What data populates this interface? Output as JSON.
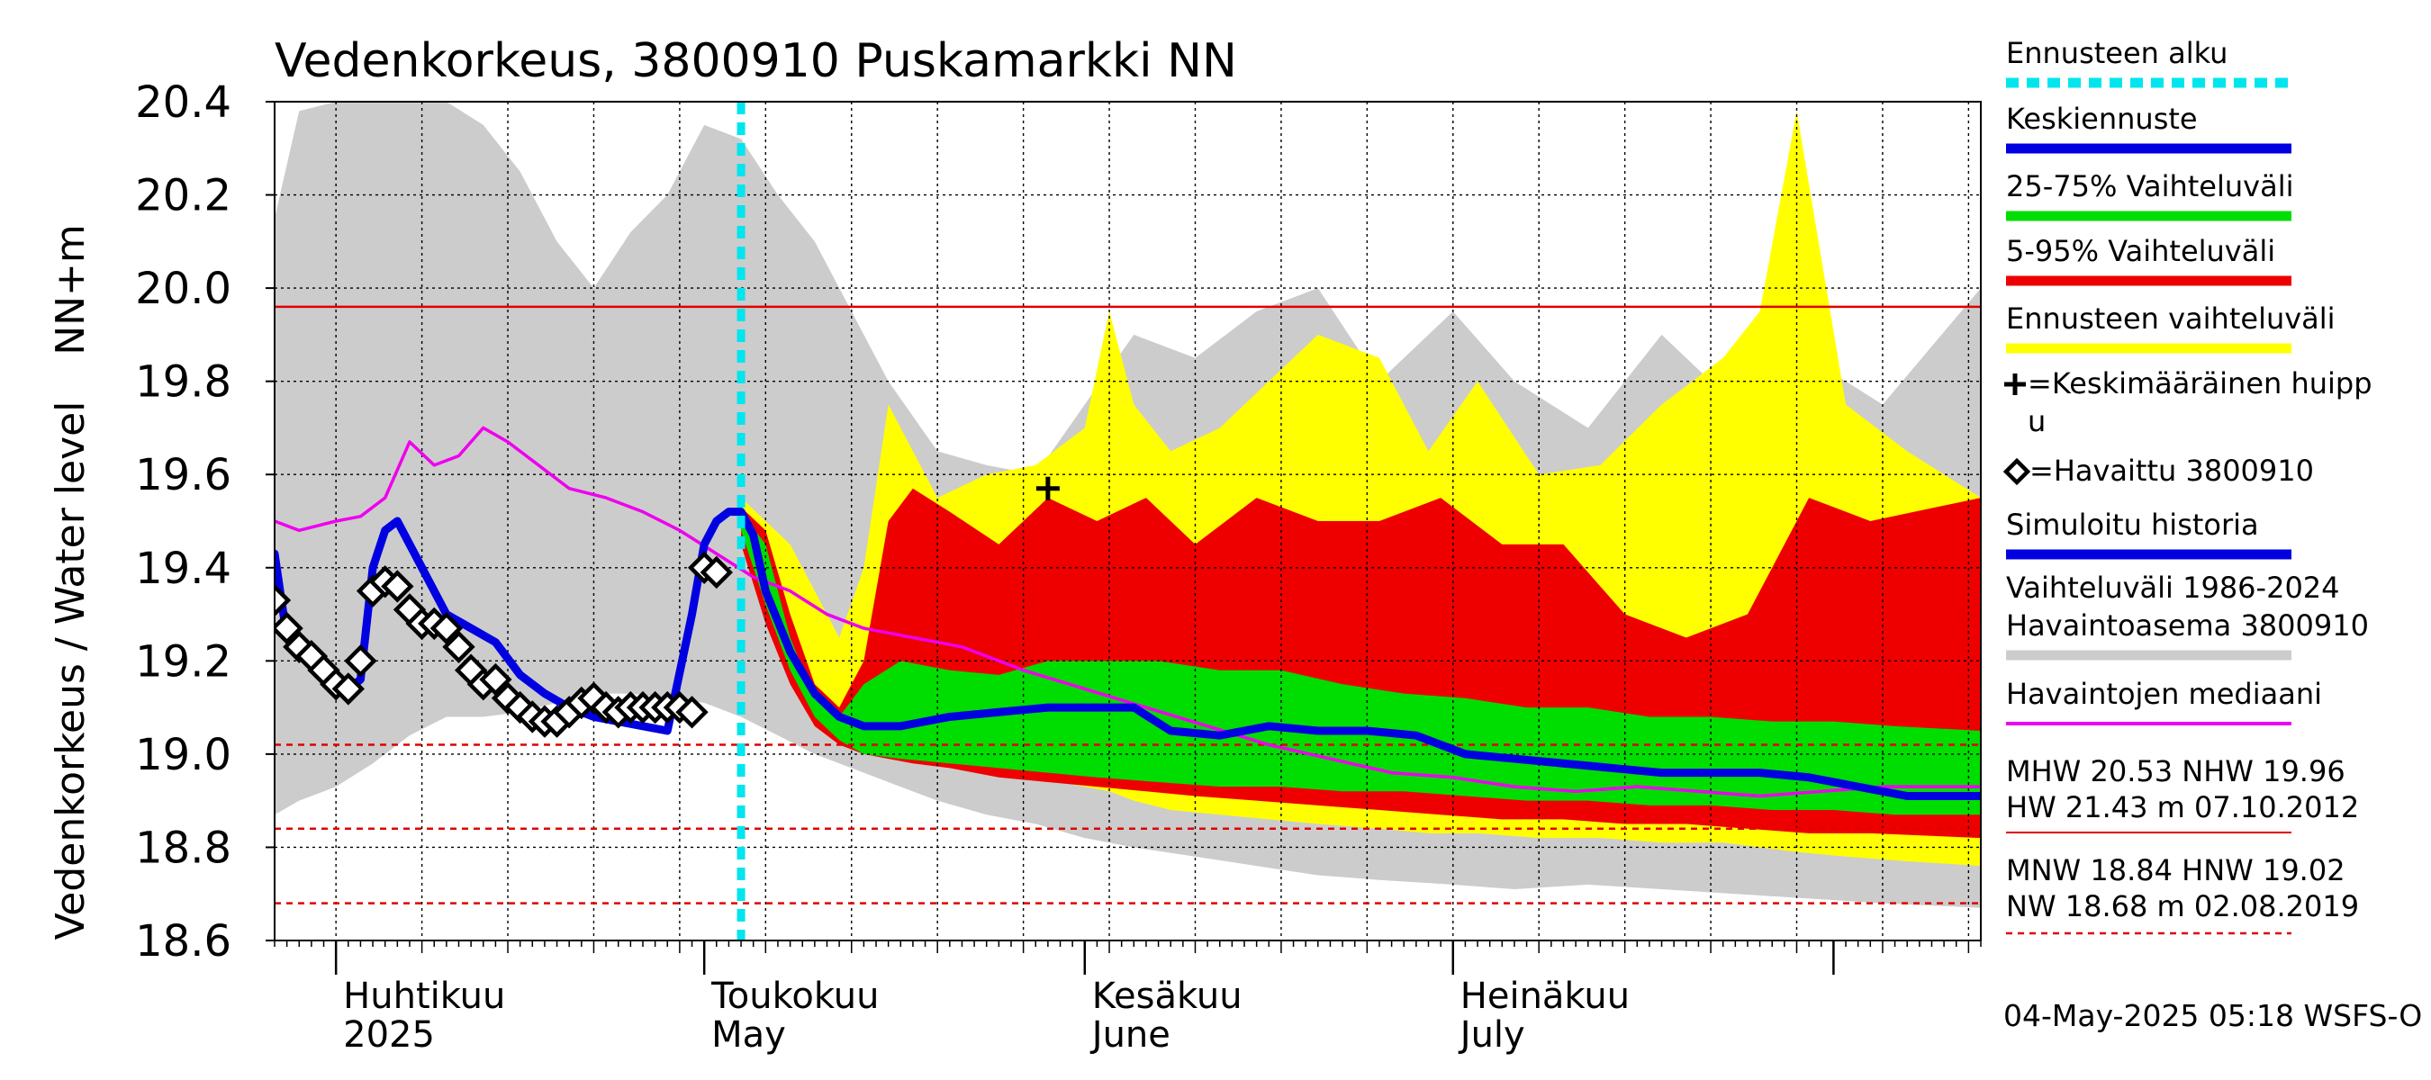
{
  "chart_data": {
    "type": "area",
    "title": "Vedenkorkeus, 3800910 Puskamarkki NN",
    "ylabel_top": "NN+m",
    "ylabel": "Vedenkorkeus / Water level",
    "xlabel": "",
    "ylim": [
      18.6,
      20.4
    ],
    "yticks": [
      "20.4",
      "20.2",
      "20.0",
      "19.8",
      "19.6",
      "19.4",
      "19.2",
      "19.0",
      "18.8",
      "18.6"
    ],
    "x_range": [
      "2025-03-27",
      "2025-08-13"
    ],
    "x_months": [
      {
        "date": "2025-04-01",
        "label1": "Huhtikuu",
        "label2": "2025"
      },
      {
        "date": "2025-05-01",
        "label1": "Toukokuu",
        "label2": "May"
      },
      {
        "date": "2025-06-01",
        "label1": "Kesäkuu",
        "label2": "June"
      },
      {
        "date": "2025-07-01",
        "label1": "Heinäkuu",
        "label2": "July"
      }
    ],
    "grid": true,
    "legend_position": "right",
    "forecast_start": "2025-05-04",
    "reference_lines": [
      {
        "name": "NHW",
        "value": 19.96,
        "style": "solid",
        "color": "#e00000"
      },
      {
        "name": "HNW",
        "value": 19.02,
        "style": "dashed",
        "color": "#e00000"
      },
      {
        "name": "MNW",
        "value": 18.84,
        "style": "dashed",
        "color": "#e00000"
      },
      {
        "name": "NW",
        "value": 18.68,
        "style": "dashed",
        "color": "#e00000"
      }
    ],
    "legend": [
      {
        "label": "Ennusteen alku",
        "color": "#00e5ee",
        "style": "dashed"
      },
      {
        "label": "Keskiennuste",
        "color": "#0000e0",
        "style": "solid"
      },
      {
        "label": "25-75% Vaihteluväli",
        "color": "#00dd00",
        "style": "solid"
      },
      {
        "label": "5-95% Vaihteluväli",
        "color": "#ee0000",
        "style": "solid"
      },
      {
        "label": "Ennusteen vaihteluväli",
        "color": "#ffff00",
        "style": "solid"
      },
      {
        "label": "=Keskimääräinen huipp",
        "label2": "u",
        "marker": "plus"
      },
      {
        "label": "=Havaittu 3800910",
        "marker": "diamond"
      },
      {
        "label": "Simuloitu historia",
        "color": "#0000e0",
        "style": "solid"
      },
      {
        "label": "Vaihteluväli 1986-2024",
        "label2": " Havaintoasema 3800910",
        "color": "#cccccc",
        "style": "solid"
      },
      {
        "label": "Havaintojen mediaani",
        "color": "#ee00ee",
        "style": "solid"
      }
    ],
    "stats": {
      "line1": "MHW  20.53 NHW  19.96",
      "line2": "HW  21.43 m 07.10.2012",
      "line3": "MNW  18.84 HNW  19.02",
      "line4": "NW  18.68 m 02.08.2019"
    },
    "footer": "04-May-2025 05:18 WSFS-O",
    "mean_peak": {
      "x": "2025-05-29",
      "y": 19.57
    },
    "series": [
      {
        "name": "Vaihteluväli 1986-2024 Havaintoasema 3800910",
        "kind": "band",
        "color": "#cccccc",
        "x": [
          "2025-03-27",
          "2025-03-29",
          "2025-04-01",
          "2025-04-04",
          "2025-04-07",
          "2025-04-10",
          "2025-04-13",
          "2025-04-16",
          "2025-04-19",
          "2025-04-22",
          "2025-04-25",
          "2025-04-28",
          "2025-05-01",
          "2025-05-04",
          "2025-05-07",
          "2025-05-10",
          "2025-05-13",
          "2025-05-16",
          "2025-05-20",
          "2025-05-24",
          "2025-05-28",
          "2025-06-01",
          "2025-06-05",
          "2025-06-10",
          "2025-06-15",
          "2025-06-20",
          "2025-06-25",
          "2025-07-01",
          "2025-07-06",
          "2025-07-12",
          "2025-07-18",
          "2025-07-24",
          "2025-07-30",
          "2025-08-05",
          "2025-08-13"
        ],
        "lower": [
          18.87,
          18.9,
          18.93,
          18.98,
          19.04,
          19.08,
          19.08,
          19.09,
          19.11,
          19.13,
          19.13,
          19.12,
          19.11,
          19.08,
          19.04,
          19.0,
          18.97,
          18.94,
          18.9,
          18.87,
          18.85,
          18.82,
          18.8,
          18.78,
          18.76,
          18.74,
          18.73,
          18.72,
          18.71,
          18.72,
          18.71,
          18.7,
          18.69,
          18.68,
          18.67
        ],
        "upper": [
          20.15,
          20.38,
          20.4,
          20.4,
          20.4,
          20.4,
          20.35,
          20.25,
          20.1,
          20.0,
          20.12,
          20.2,
          20.35,
          20.32,
          20.2,
          20.1,
          19.95,
          19.8,
          19.65,
          19.62,
          19.6,
          19.75,
          19.9,
          19.85,
          19.95,
          20.0,
          19.8,
          19.95,
          19.8,
          19.7,
          19.9,
          19.75,
          19.85,
          19.75,
          20.0
        ]
      },
      {
        "name": "Ennusteen vaihteluväli",
        "kind": "band",
        "color": "#ffff00",
        "x": [
          "2025-05-04",
          "2025-05-06",
          "2025-05-08",
          "2025-05-10",
          "2025-05-12",
          "2025-05-14",
          "2025-05-16",
          "2025-05-18",
          "2025-05-20",
          "2025-05-24",
          "2025-05-28",
          "2025-06-01",
          "2025-06-03",
          "2025-06-05",
          "2025-06-08",
          "2025-06-12",
          "2025-06-16",
          "2025-06-20",
          "2025-06-25",
          "2025-06-29",
          "2025-07-03",
          "2025-07-08",
          "2025-07-13",
          "2025-07-18",
          "2025-07-23",
          "2025-07-26",
          "2025-07-29",
          "2025-08-02",
          "2025-08-07",
          "2025-08-13"
        ],
        "lower": [
          19.45,
          19.3,
          19.2,
          19.12,
          19.06,
          19.03,
          19.01,
          19.0,
          18.99,
          18.97,
          18.95,
          18.93,
          18.92,
          18.9,
          18.88,
          18.87,
          18.86,
          18.85,
          18.84,
          18.83,
          18.83,
          18.82,
          18.82,
          18.81,
          18.81,
          18.8,
          18.79,
          18.78,
          18.77,
          18.76
        ],
        "upper": [
          19.55,
          19.5,
          19.45,
          19.35,
          19.25,
          19.4,
          19.75,
          19.65,
          19.55,
          19.6,
          19.62,
          19.7,
          19.95,
          19.75,
          19.65,
          19.7,
          19.8,
          19.9,
          19.85,
          19.65,
          19.8,
          19.6,
          19.62,
          19.75,
          19.85,
          19.95,
          20.38,
          19.75,
          19.65,
          19.55
        ]
      },
      {
        "name": "5-95% Vaihteluväli",
        "kind": "band",
        "color": "#ee0000",
        "x": [
          "2025-05-04",
          "2025-05-06",
          "2025-05-08",
          "2025-05-10",
          "2025-05-12",
          "2025-05-14",
          "2025-05-16",
          "2025-05-18",
          "2025-05-21",
          "2025-05-25",
          "2025-05-29",
          "2025-06-02",
          "2025-06-06",
          "2025-06-10",
          "2025-06-15",
          "2025-06-20",
          "2025-06-25",
          "2025-06-30",
          "2025-07-05",
          "2025-07-10",
          "2025-07-15",
          "2025-07-20",
          "2025-07-25",
          "2025-07-30",
          "2025-08-04",
          "2025-08-13"
        ],
        "lower": [
          19.45,
          19.28,
          19.15,
          19.06,
          19.02,
          19.0,
          18.99,
          18.98,
          18.97,
          18.95,
          18.94,
          18.93,
          18.92,
          18.91,
          18.9,
          18.89,
          18.88,
          18.87,
          18.86,
          18.86,
          18.85,
          18.85,
          18.84,
          18.83,
          18.83,
          18.82
        ],
        "upper": [
          19.53,
          19.48,
          19.3,
          19.15,
          19.1,
          19.2,
          19.5,
          19.57,
          19.52,
          19.45,
          19.55,
          19.5,
          19.55,
          19.45,
          19.55,
          19.5,
          19.5,
          19.55,
          19.45,
          19.45,
          19.3,
          19.25,
          19.3,
          19.55,
          19.5,
          19.55
        ]
      },
      {
        "name": "25-75% Vaihteluväli",
        "kind": "band",
        "color": "#00dd00",
        "x": [
          "2025-05-04",
          "2025-05-06",
          "2025-05-08",
          "2025-05-10",
          "2025-05-12",
          "2025-05-14",
          "2025-05-17",
          "2025-05-21",
          "2025-05-25",
          "2025-05-29",
          "2025-06-02",
          "2025-06-07",
          "2025-06-12",
          "2025-06-17",
          "2025-06-22",
          "2025-06-27",
          "2025-07-02",
          "2025-07-07",
          "2025-07-12",
          "2025-07-17",
          "2025-07-22",
          "2025-07-27",
          "2025-08-01",
          "2025-08-06",
          "2025-08-13"
        ],
        "lower": [
          19.48,
          19.32,
          19.18,
          19.08,
          19.03,
          19.0,
          18.99,
          18.98,
          18.97,
          18.96,
          18.95,
          18.94,
          18.93,
          18.93,
          18.92,
          18.92,
          18.91,
          18.9,
          18.9,
          18.89,
          18.89,
          18.88,
          18.88,
          18.87,
          18.87
        ],
        "upper": [
          19.52,
          19.45,
          19.25,
          19.12,
          19.08,
          19.15,
          19.2,
          19.18,
          19.17,
          19.2,
          19.2,
          19.2,
          19.18,
          19.18,
          19.15,
          19.13,
          19.12,
          19.1,
          19.1,
          19.08,
          19.08,
          19.07,
          19.07,
          19.06,
          19.05
        ]
      },
      {
        "name": "Havaintojen mediaani",
        "kind": "line",
        "color": "#ee00ee",
        "x": [
          "2025-03-27",
          "2025-03-29",
          "2025-04-01",
          "2025-04-03",
          "2025-04-05",
          "2025-04-07",
          "2025-04-09",
          "2025-04-11",
          "2025-04-13",
          "2025-04-15",
          "2025-04-17",
          "2025-04-20",
          "2025-04-23",
          "2025-04-26",
          "2025-04-29",
          "2025-05-02",
          "2025-05-05",
          "2025-05-08",
          "2025-05-11",
          "2025-05-14",
          "2025-05-18",
          "2025-05-22",
          "2025-05-27",
          "2025-06-01",
          "2025-06-06",
          "2025-06-11",
          "2025-06-16",
          "2025-06-21",
          "2025-06-26",
          "2025-07-01",
          "2025-07-06",
          "2025-07-11",
          "2025-07-16",
          "2025-07-21",
          "2025-07-26",
          "2025-07-31",
          "2025-08-05",
          "2025-08-13"
        ],
        "y": [
          19.5,
          19.48,
          19.5,
          19.51,
          19.55,
          19.67,
          19.62,
          19.64,
          19.7,
          19.67,
          19.63,
          19.57,
          19.55,
          19.52,
          19.48,
          19.43,
          19.38,
          19.35,
          19.3,
          19.27,
          19.25,
          19.23,
          19.18,
          19.14,
          19.1,
          19.06,
          19.02,
          18.99,
          18.96,
          18.95,
          18.93,
          18.92,
          18.93,
          18.92,
          18.91,
          18.92,
          18.93,
          18.93
        ]
      },
      {
        "name": "Simuloitu historia",
        "kind": "line",
        "color": "#0000e0",
        "x": [
          "2025-03-27",
          "2025-03-28",
          "2025-03-30",
          "2025-04-01",
          "2025-04-02",
          "2025-04-03",
          "2025-04-04",
          "2025-04-05",
          "2025-04-06",
          "2025-04-08",
          "2025-04-10",
          "2025-04-12",
          "2025-04-14",
          "2025-04-16",
          "2025-04-18",
          "2025-04-20",
          "2025-04-22",
          "2025-04-24",
          "2025-04-26",
          "2025-04-28",
          "2025-04-30",
          "2025-05-01",
          "2025-05-02",
          "2025-05-03",
          "2025-05-04"
        ],
        "y": [
          19.43,
          19.25,
          19.2,
          19.15,
          19.14,
          19.16,
          19.4,
          19.48,
          19.5,
          19.4,
          19.3,
          19.27,
          19.24,
          19.17,
          19.13,
          19.1,
          19.08,
          19.07,
          19.06,
          19.05,
          19.3,
          19.45,
          19.5,
          19.52,
          19.52
        ]
      },
      {
        "name": "Keskiennuste",
        "kind": "line",
        "color": "#0000e0",
        "x": [
          "2025-05-04",
          "2025-05-05",
          "2025-05-06",
          "2025-05-08",
          "2025-05-10",
          "2025-05-12",
          "2025-05-14",
          "2025-05-17",
          "2025-05-21",
          "2025-05-25",
          "2025-05-29",
          "2025-06-02",
          "2025-06-05",
          "2025-06-08",
          "2025-06-12",
          "2025-06-16",
          "2025-06-20",
          "2025-06-24",
          "2025-06-28",
          "2025-07-02",
          "2025-07-06",
          "2025-07-10",
          "2025-07-14",
          "2025-07-18",
          "2025-07-22",
          "2025-07-26",
          "2025-07-30",
          "2025-08-03",
          "2025-08-07",
          "2025-08-13"
        ],
        "y": [
          19.52,
          19.47,
          19.35,
          19.22,
          19.13,
          19.08,
          19.06,
          19.06,
          19.08,
          19.09,
          19.1,
          19.1,
          19.1,
          19.05,
          19.04,
          19.06,
          19.05,
          19.05,
          19.04,
          19.0,
          18.99,
          18.98,
          18.97,
          18.96,
          18.96,
          18.96,
          18.95,
          18.93,
          18.91,
          18.91
        ]
      },
      {
        "name": "Havaittu 3800910",
        "kind": "markers",
        "marker": "diamond",
        "x": [
          "2025-03-27",
          "2025-03-28",
          "2025-03-29",
          "2025-03-30",
          "2025-03-31",
          "2025-04-01",
          "2025-04-02",
          "2025-04-03",
          "2025-04-04",
          "2025-04-05",
          "2025-04-06",
          "2025-04-07",
          "2025-04-08",
          "2025-04-09",
          "2025-04-10",
          "2025-04-11",
          "2025-04-12",
          "2025-04-13",
          "2025-04-14",
          "2025-04-15",
          "2025-04-16",
          "2025-04-17",
          "2025-04-18",
          "2025-04-19",
          "2025-04-20",
          "2025-04-21",
          "2025-04-22",
          "2025-04-23",
          "2025-04-24",
          "2025-04-25",
          "2025-04-26",
          "2025-04-27",
          "2025-04-28",
          "2025-04-29",
          "2025-04-30",
          "2025-05-01",
          "2025-05-02"
        ],
        "y": [
          19.33,
          19.27,
          19.23,
          19.21,
          19.18,
          19.15,
          19.14,
          19.2,
          19.35,
          19.37,
          19.36,
          19.31,
          19.28,
          19.28,
          19.27,
          19.23,
          19.18,
          19.15,
          19.16,
          19.12,
          19.1,
          19.08,
          19.07,
          19.07,
          19.09,
          19.11,
          19.12,
          19.1,
          19.09,
          19.1,
          19.1,
          19.1,
          19.1,
          19.1,
          19.09,
          19.4,
          19.39
        ]
      }
    ]
  }
}
